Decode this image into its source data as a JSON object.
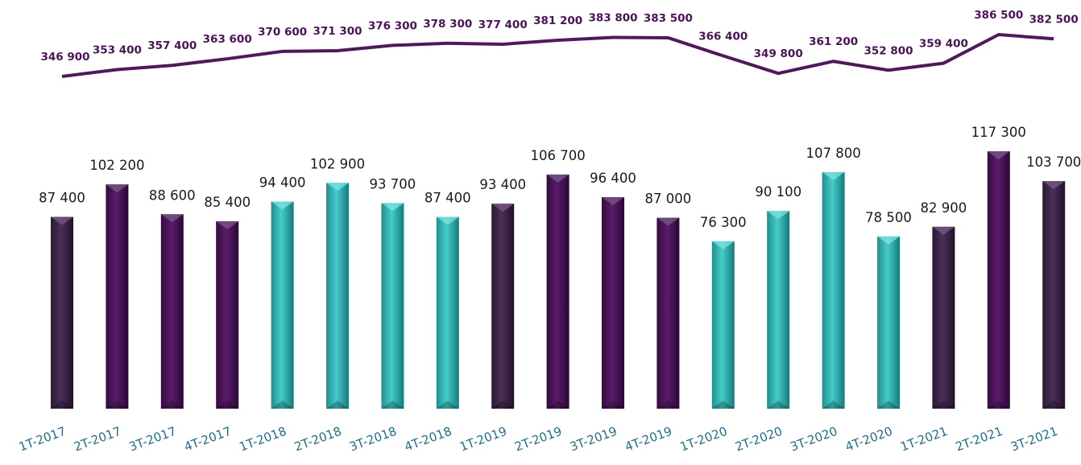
{
  "colors": {
    "dark_purple": "#3d2447",
    "purple": "#4a1457",
    "teal": "#32b8b8",
    "line": "#4e1a5a",
    "line_label": "#4a1457",
    "tick_label": "#1f6e8a"
  },
  "chart_data": {
    "type": "bar",
    "categories": [
      "1T-2017",
      "2T-2017",
      "3T-2017",
      "4T-2017",
      "1T-2018",
      "2T-2018",
      "3T-2018",
      "4T-2018",
      "1T-2019",
      "2T-2019",
      "3T-2019",
      "4T-2019",
      "1T-2020",
      "2T-2020",
      "3T-2020",
      "4T-2020",
      "1T-2021",
      "2T-2021",
      "3T-2021"
    ],
    "series": [
      {
        "type": "bar",
        "values": [
          87400,
          102200,
          88600,
          85400,
          94400,
          102900,
          93700,
          87400,
          93400,
          106700,
          96400,
          87000,
          76300,
          90100,
          107800,
          78500,
          82900,
          117300,
          103700
        ],
        "labels": [
          "87 400",
          "102 200",
          "88 600",
          "85 400",
          "94 400",
          "102 900",
          "93 700",
          "87 400",
          "93 400",
          "106 700",
          "96 400",
          "87 000",
          "76 300",
          "90 100",
          "107 800",
          "78 500",
          "82 900",
          "117 300",
          "103 700"
        ],
        "bar_colors": [
          "dark_purple",
          "purple",
          "purple",
          "purple",
          "teal",
          "teal",
          "teal",
          "teal",
          "dark_purple",
          "purple",
          "purple",
          "purple",
          "teal",
          "teal",
          "teal",
          "teal",
          "dark_purple",
          "purple",
          "dark_purple"
        ]
      },
      {
        "type": "line",
        "values": [
          346900,
          353400,
          357400,
          363600,
          370600,
          371300,
          376300,
          378300,
          377400,
          381200,
          383800,
          383500,
          366400,
          349800,
          361200,
          352800,
          359400,
          386500,
          382500
        ],
        "labels": [
          "346 900",
          "353 400",
          "357 400",
          "363 600",
          "370 600",
          "371 300",
          "376 300",
          "378 300",
          "377 400",
          "381 200",
          "383 800",
          "383 500",
          "366 400",
          "349 800",
          "361 200",
          "352 800",
          "359 400",
          "386 500",
          "382 500"
        ]
      }
    ],
    "title": "",
    "xlabel": "",
    "ylabel": "",
    "ylim_bars": [
      0,
      120000
    ],
    "ylim_line": [
      0,
      390000
    ],
    "grid": false,
    "legend": "none"
  }
}
